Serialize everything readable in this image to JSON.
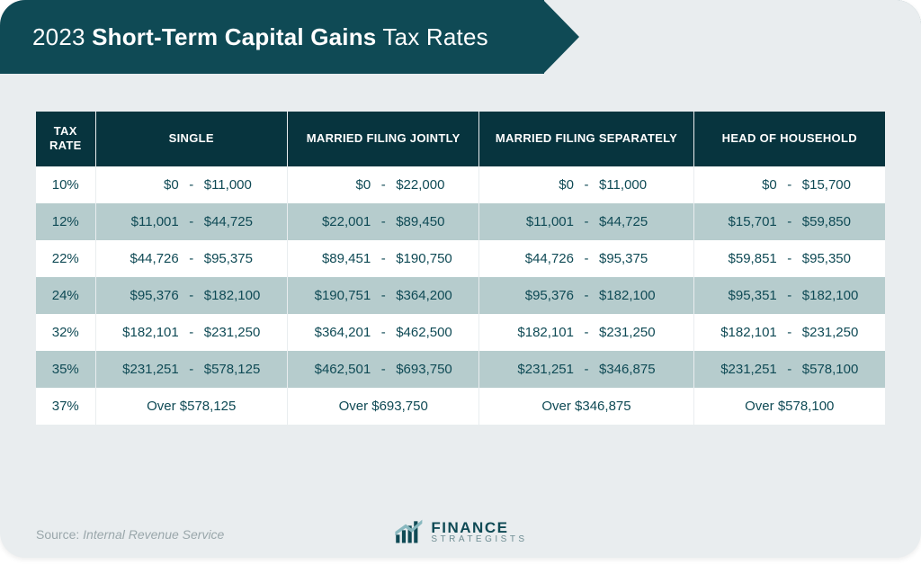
{
  "title": {
    "year": "2023",
    "strong": "Short-Term Capital Gains",
    "tail": "Tax Rates"
  },
  "colors": {
    "banner_bg": "#0f4a55",
    "header_bg": "#07343e",
    "card_bg": "#e9edef",
    "row_bg": "#ffffff",
    "row_alt_bg": "#b6cccd",
    "text": "#0f4a55",
    "source_text": "#9aa7ab",
    "logo_accent": "#88b8bf"
  },
  "table": {
    "type": "table",
    "columns": [
      "TAX RATE",
      "SINGLE",
      "MARRIED FILING JOINTLY",
      "MARRIED FILING SEPARATELY",
      "HEAD OF HOUSEHOLD"
    ],
    "col_widths_pct": [
      7,
      23.25,
      23.25,
      23.25,
      23.25
    ],
    "header_fontsize": 13,
    "cell_fontsize": 15,
    "rows": [
      {
        "rate": "10%",
        "single": {
          "lo": "$0",
          "hi": "$11,000"
        },
        "mfj": {
          "lo": "$0",
          "hi": "$22,000"
        },
        "mfs": {
          "lo": "$0",
          "hi": "$11,000"
        },
        "hoh": {
          "lo": "$0",
          "hi": "$15,700"
        }
      },
      {
        "rate": "12%",
        "single": {
          "lo": "$11,001",
          "hi": "$44,725"
        },
        "mfj": {
          "lo": "$22,001",
          "hi": "$89,450"
        },
        "mfs": {
          "lo": "$11,001",
          "hi": "$44,725"
        },
        "hoh": {
          "lo": "$15,701",
          "hi": "$59,850"
        }
      },
      {
        "rate": "22%",
        "single": {
          "lo": "$44,726",
          "hi": "$95,375"
        },
        "mfj": {
          "lo": "$89,451",
          "hi": "$190,750"
        },
        "mfs": {
          "lo": "$44,726",
          "hi": "$95,375"
        },
        "hoh": {
          "lo": "$59,851",
          "hi": "$95,350"
        }
      },
      {
        "rate": "24%",
        "single": {
          "lo": "$95,376",
          "hi": "$182,100"
        },
        "mfj": {
          "lo": "$190,751",
          "hi": "$364,200"
        },
        "mfs": {
          "lo": "$95,376",
          "hi": "$182,100"
        },
        "hoh": {
          "lo": "$95,351",
          "hi": "$182,100"
        }
      },
      {
        "rate": "32%",
        "single": {
          "lo": "$182,101",
          "hi": "$231,250"
        },
        "mfj": {
          "lo": "$364,201",
          "hi": "$462,500"
        },
        "mfs": {
          "lo": "$182,101",
          "hi": "$231,250"
        },
        "hoh": {
          "lo": "$182,101",
          "hi": "$231,250"
        }
      },
      {
        "rate": "35%",
        "single": {
          "lo": "$231,251",
          "hi": "$578,125"
        },
        "mfj": {
          "lo": "$462,501",
          "hi": "$693,750"
        },
        "mfs": {
          "lo": "$231,251",
          "hi": "$346,875"
        },
        "hoh": {
          "lo": "$231,251",
          "hi": "$578,100"
        }
      },
      {
        "rate": "37%",
        "single": {
          "over": "Over $578,125"
        },
        "mfj": {
          "over": "Over $693,750"
        },
        "mfs": {
          "over": "Over $346,875"
        },
        "hoh": {
          "over": "Over $578,100"
        }
      }
    ]
  },
  "source": {
    "label": "Source:",
    "org": "Internal Revenue Service"
  },
  "logo": {
    "top": "FINANCE",
    "bottom": "STRATEGISTS"
  }
}
